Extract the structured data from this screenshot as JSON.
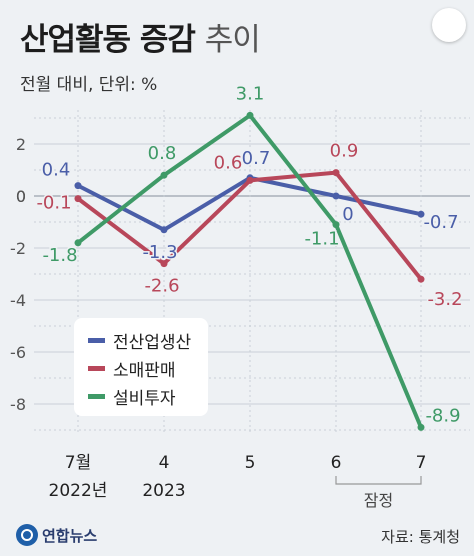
{
  "header": {
    "title_main": "산업활동 증감",
    "title_sub": "추이",
    "unit": "전월 대비, 단위: %"
  },
  "footer": {
    "logo_text": "연합뉴스",
    "source": "자료: 통계청"
  },
  "chart_data": {
    "type": "line",
    "categories": [
      "7월",
      "4",
      "5",
      "6",
      "7"
    ],
    "category_sublabels": [
      "2022년",
      "2023",
      "",
      "",
      ""
    ],
    "bracket_label": "잠정",
    "ylim": [
      -9,
      3.5
    ],
    "yticks": [
      2,
      0,
      -2,
      -4,
      -6,
      -8
    ],
    "grid": true,
    "legend_position": "lower-left",
    "series": [
      {
        "name": "전산업생산",
        "color": "#4a5ea8",
        "values": [
          0.4,
          -1.3,
          0.7,
          0,
          -0.7
        ],
        "labels": [
          "0.4",
          "-1.3",
          "0.7",
          "0",
          "-0.7"
        ]
      },
      {
        "name": "소매판매",
        "color": "#b8475a",
        "values": [
          -0.1,
          -2.6,
          0.6,
          0.9,
          -3.2
        ],
        "labels": [
          "-0.1",
          "-2.6",
          "0.6",
          "0.9",
          "-3.2"
        ]
      },
      {
        "name": "설비투자",
        "color": "#3f9a67",
        "values": [
          -1.8,
          0.8,
          3.1,
          -1.1,
          -8.9
        ],
        "labels": [
          "-1.8",
          "0.8",
          "3.1",
          "-1.1",
          "-8.9"
        ]
      }
    ]
  }
}
